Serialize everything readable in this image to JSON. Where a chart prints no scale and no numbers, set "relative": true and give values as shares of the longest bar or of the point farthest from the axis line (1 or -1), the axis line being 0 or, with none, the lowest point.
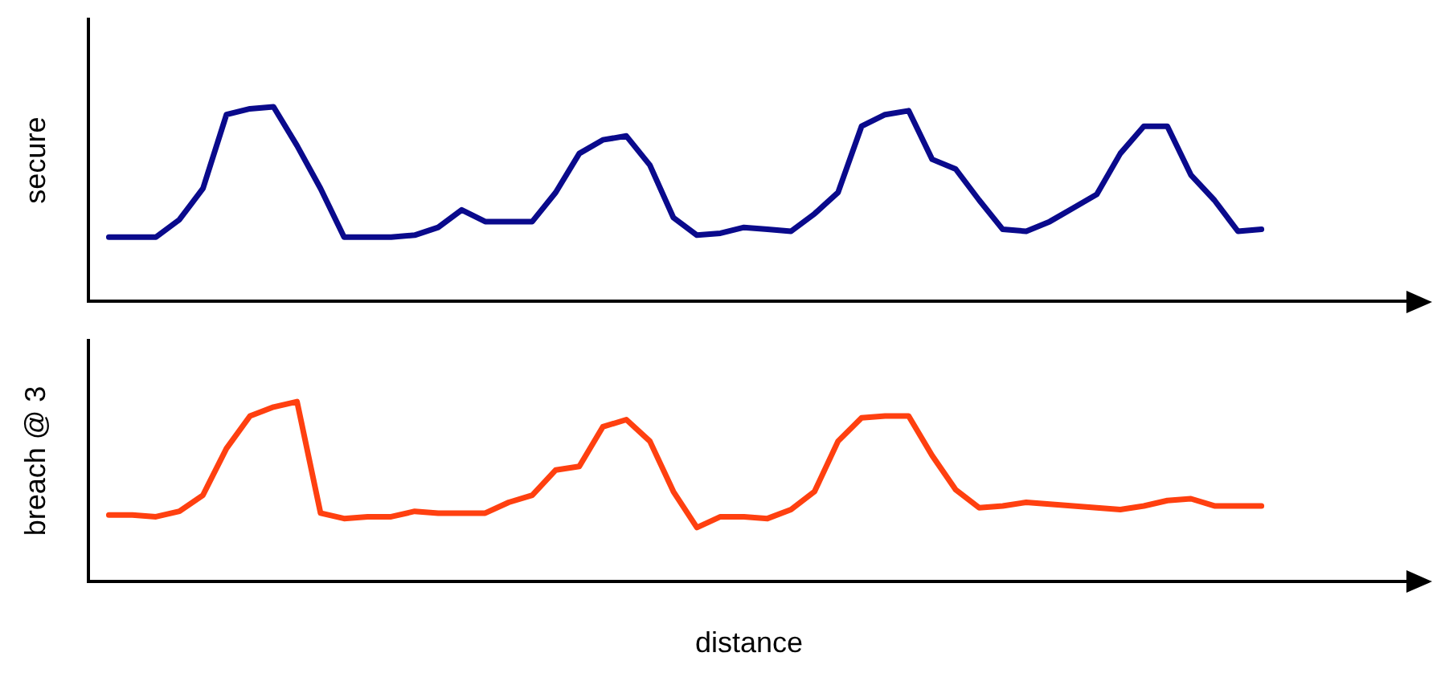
{
  "chart_data": [
    {
      "type": "line",
      "ylabel": "secure",
      "relative": true,
      "grid": false,
      "categories": [
        null,
        null,
        null,
        null,
        null,
        null,
        null,
        null,
        null,
        null,
        null,
        null,
        null,
        null,
        null,
        null,
        null,
        null,
        null,
        null,
        null,
        null,
        null,
        null,
        null,
        null,
        null,
        null,
        null,
        null,
        null,
        null,
        null,
        null,
        null,
        null,
        null,
        null,
        null,
        null,
        null,
        null,
        null,
        null,
        null,
        null,
        null,
        null,
        null,
        null,
        null
      ],
      "series": [
        {
          "color": "#0a0a8c",
          "values": [
            0.33,
            0.33,
            0.33,
            0.42,
            0.58,
            0.96,
            0.99,
            1.0,
            0.8,
            0.58,
            0.33,
            0.33,
            0.33,
            0.34,
            0.38,
            0.47,
            0.41,
            0.41,
            0.41,
            0.56,
            0.76,
            0.83,
            0.85,
            0.7,
            0.43,
            0.34,
            0.35,
            0.38,
            0.37,
            0.36,
            0.45,
            0.56,
            0.9,
            0.96,
            0.98,
            0.73,
            0.68,
            0.52,
            0.37,
            0.36,
            0.41,
            0.48,
            0.55,
            0.76,
            0.9,
            0.9,
            0.65,
            0.52,
            0.36,
            0.37,
            null
          ]
        }
      ]
    },
    {
      "type": "line",
      "ylabel": "breach @ 3",
      "xlabel": "distance",
      "relative": true,
      "grid": false,
      "categories": [
        null,
        null,
        null,
        null,
        null,
        null,
        null,
        null,
        null,
        null,
        null,
        null,
        null,
        null,
        null,
        null,
        null,
        null,
        null,
        null,
        null,
        null,
        null,
        null,
        null,
        null,
        null,
        null,
        null,
        null,
        null,
        null,
        null,
        null,
        null,
        null,
        null,
        null,
        null,
        null,
        null,
        null,
        null,
        null,
        null,
        null,
        null,
        null,
        null,
        null,
        null
      ],
      "series": [
        {
          "color": "#ff4010",
          "values": [
            0.37,
            0.37,
            0.36,
            0.39,
            0.48,
            0.74,
            0.92,
            0.97,
            1.0,
            0.38,
            0.35,
            0.36,
            0.36,
            0.39,
            0.38,
            0.38,
            0.38,
            0.44,
            0.48,
            0.62,
            0.64,
            0.86,
            0.9,
            0.78,
            0.5,
            0.3,
            0.36,
            0.36,
            0.35,
            0.4,
            0.5,
            0.78,
            0.91,
            0.92,
            0.92,
            0.7,
            0.51,
            0.41,
            0.42,
            0.44,
            0.43,
            0.42,
            0.41,
            0.4,
            0.42,
            0.45,
            0.46,
            0.42,
            0.42,
            0.42,
            null
          ]
        }
      ]
    }
  ]
}
